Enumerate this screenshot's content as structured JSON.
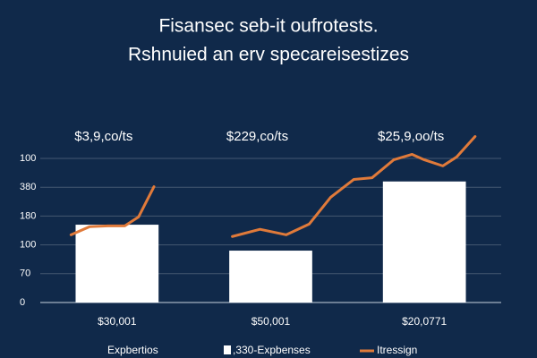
{
  "chart_data": {
    "type": "bar",
    "title": "Fisansec seb-it oufrotests.",
    "subtitle": "Rshnuied an erv specareisestizes",
    "categories": [
      "$30,001",
      "$50,001",
      "$20,0771"
    ],
    "annotations": [
      "$3,9,co/ts",
      "$229,co/ts",
      "$25,9,oo/ts"
    ],
    "series": [
      {
        "name": ",330-Expbenses",
        "color": "#ffffff",
        "values": [
          2.7,
          1.8,
          4.2
        ]
      },
      {
        "name": "Itressign",
        "type": "line",
        "color": "#e07a3a",
        "x": [
          0.2,
          0.32,
          0.44,
          0.55,
          0.64,
          0.74,
          null,
          1.25,
          1.43,
          1.6,
          1.75,
          1.89,
          2.04,
          2.16,
          2.3,
          2.42,
          2.5,
          2.62,
          2.71,
          2.83
        ],
        "values": [
          2.35,
          2.63,
          2.66,
          2.66,
          2.97,
          4.02,
          null,
          2.29,
          2.54,
          2.35,
          2.72,
          3.65,
          4.27,
          4.33,
          4.95,
          5.14,
          4.95,
          4.74,
          5.05,
          5.76
        ]
      }
    ],
    "legend_extra": "Expbertios",
    "xlim": [
      0,
      3
    ],
    "ylim": [
      0,
      5
    ],
    "yticks": [
      {
        "value": 0,
        "label": "0"
      },
      {
        "value": 1,
        "label": "70"
      },
      {
        "value": 2,
        "label": "100"
      },
      {
        "value": 3,
        "label": "180"
      },
      {
        "value": 4,
        "label": "380"
      },
      {
        "value": 5,
        "label": "100"
      }
    ],
    "grid": true
  }
}
